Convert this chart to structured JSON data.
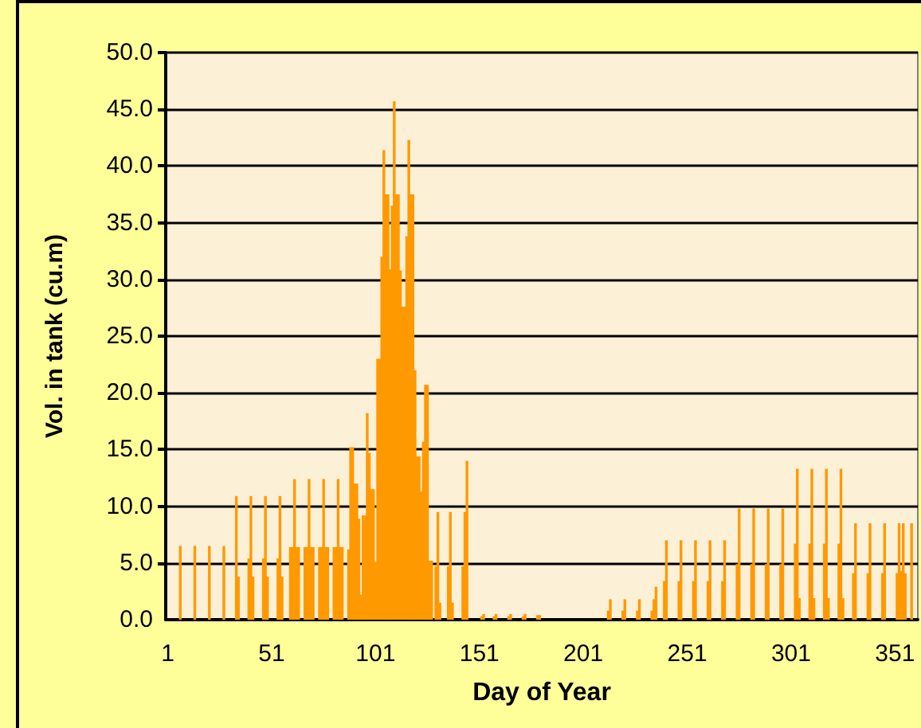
{
  "chart_data": {
    "type": "bar",
    "xlabel": "Day of Year",
    "ylabel": "Vol. in tank (cu.m)",
    "x": [
      7,
      14,
      21,
      28,
      34,
      35,
      40,
      41,
      42,
      47,
      48,
      49,
      54,
      55,
      56,
      60,
      61,
      62,
      63,
      64,
      67,
      68,
      69,
      70,
      71,
      74,
      75,
      76,
      77,
      78,
      81,
      82,
      83,
      84,
      85,
      88,
      89,
      90,
      91,
      92,
      93,
      94,
      95,
      96,
      97,
      98,
      99,
      100,
      101,
      102,
      103,
      104,
      105,
      106,
      107,
      108,
      109,
      110,
      111,
      112,
      113,
      114,
      115,
      116,
      117,
      118,
      119,
      120,
      121,
      122,
      123,
      124,
      125,
      126,
      127,
      128,
      130,
      131,
      132,
      136,
      137,
      138,
      143,
      144,
      145,
      152,
      153,
      158,
      159,
      165,
      166,
      172,
      173,
      179,
      180,
      213,
      214,
      220,
      221,
      227,
      228,
      234,
      235,
      236,
      240,
      241,
      247,
      248,
      254,
      255,
      261,
      262,
      268,
      269,
      275,
      276,
      282,
      283,
      289,
      290,
      296,
      297,
      303,
      304,
      305,
      310,
      311,
      312,
      317,
      318,
      319,
      324,
      325,
      326,
      331,
      332,
      338,
      339,
      345,
      346,
      352,
      353,
      354,
      355,
      356,
      359
    ],
    "values": [
      6.5,
      6.5,
      6.5,
      6.5,
      10.9,
      3.8,
      5.4,
      10.9,
      3.8,
      5.4,
      10.9,
      3.8,
      5.4,
      10.9,
      3.8,
      6.4,
      6.4,
      12.4,
      6.4,
      6.4,
      6.4,
      6.4,
      12.4,
      6.4,
      6.4,
      6.4,
      6.4,
      12.4,
      6.4,
      6.4,
      6.4,
      6.4,
      12.4,
      6.4,
      6.4,
      6.2,
      15.2,
      15.2,
      12.0,
      12.0,
      8.9,
      2.2,
      9.2,
      9.2,
      18.2,
      14.7,
      11.5,
      11.5,
      5.1,
      23.0,
      23.0,
      32.0,
      41.4,
      37.5,
      37.5,
      30.9,
      36.5,
      45.7,
      37.5,
      37.5,
      30.8,
      27.6,
      27.6,
      33.8,
      42.3,
      37.5,
      37.5,
      22.0,
      14.4,
      14.4,
      11.3,
      15.7,
      20.7,
      20.7,
      5.2,
      5.2,
      4.7,
      9.5,
      1.5,
      4.7,
      9.5,
      1.5,
      4.7,
      9.5,
      14.0,
      0.3,
      0.5,
      0.3,
      0.5,
      0.3,
      0.5,
      0.3,
      0.5,
      0.4,
      0.4,
      0.8,
      1.8,
      0.8,
      1.8,
      0.8,
      1.8,
      0.8,
      1.8,
      2.9,
      3.4,
      7.0,
      3.4,
      7.0,
      3.4,
      7.0,
      3.4,
      7.0,
      3.4,
      7.0,
      4.9,
      9.8,
      4.9,
      9.8,
      4.9,
      9.8,
      4.9,
      9.8,
      6.7,
      13.3,
      1.9,
      6.7,
      13.3,
      1.9,
      6.7,
      13.3,
      1.9,
      6.7,
      13.3,
      1.9,
      4.1,
      8.5,
      4.1,
      8.5,
      4.1,
      8.5,
      4.1,
      8.5,
      4.3,
      8.5,
      4.1,
      8.5
    ],
    "color": "#ff9900",
    "xlim": [
      0,
      362
    ],
    "xticks": [
      1,
      51,
      101,
      151,
      201,
      251,
      301,
      351
    ],
    "ylim": [
      0,
      50
    ],
    "yticks": [
      {
        "value": 0,
        "label": "0.0"
      },
      {
        "value": 5,
        "label": "5.0"
      },
      {
        "value": 10,
        "label": "10.0"
      },
      {
        "value": 15,
        "label": "15.0"
      },
      {
        "value": 20,
        "label": "20.0"
      },
      {
        "value": 25,
        "label": "25.0"
      },
      {
        "value": 30,
        "label": "30.0"
      },
      {
        "value": 35,
        "label": "35.0"
      },
      {
        "value": 40,
        "label": "40.0"
      },
      {
        "value": 45,
        "label": "45.0"
      },
      {
        "value": 50,
        "label": "50.0"
      }
    ],
    "grid": "y"
  }
}
